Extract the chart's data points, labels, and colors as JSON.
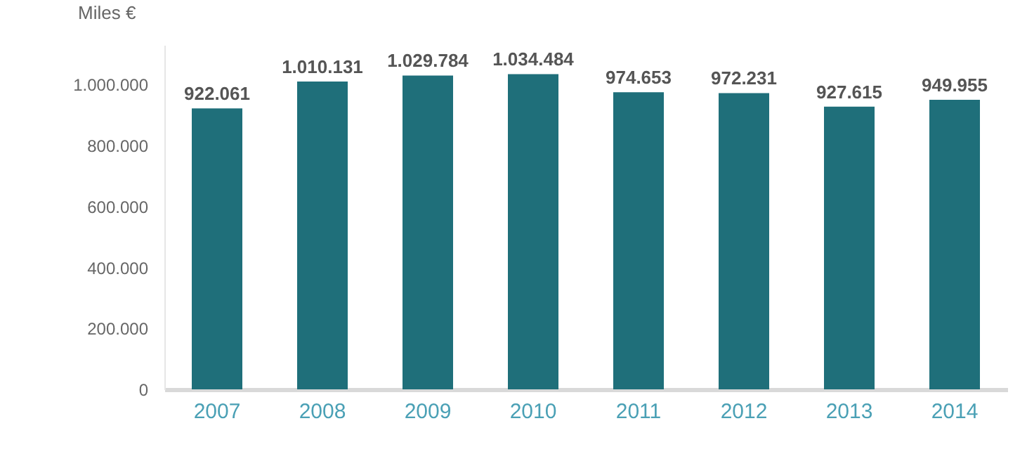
{
  "chart_data": {
    "type": "bar",
    "ylabel": "Miles €",
    "categories": [
      "2007",
      "2008",
      "2009",
      "2010",
      "2011",
      "2012",
      "2013",
      "2014"
    ],
    "values": [
      922061,
      1010131,
      1029784,
      1034484,
      974653,
      972231,
      927615,
      949955
    ],
    "value_labels": [
      "922.061",
      "1.010.131",
      "1.029.784",
      "1.034.484",
      "974.653",
      "972.231",
      "927.615",
      "949.955"
    ],
    "color": "#1f6f7a",
    "ylim": [
      0,
      1130000
    ],
    "yticks": [
      {
        "value": 0,
        "label": "0"
      },
      {
        "value": 200000,
        "label": "200.000"
      },
      {
        "value": 400000,
        "label": "400.000"
      },
      {
        "value": 600000,
        "label": "600.000"
      },
      {
        "value": 800000,
        "label": "800.000"
      },
      {
        "value": 1000000,
        "label": "1.000.000"
      }
    ],
    "grid": false
  }
}
